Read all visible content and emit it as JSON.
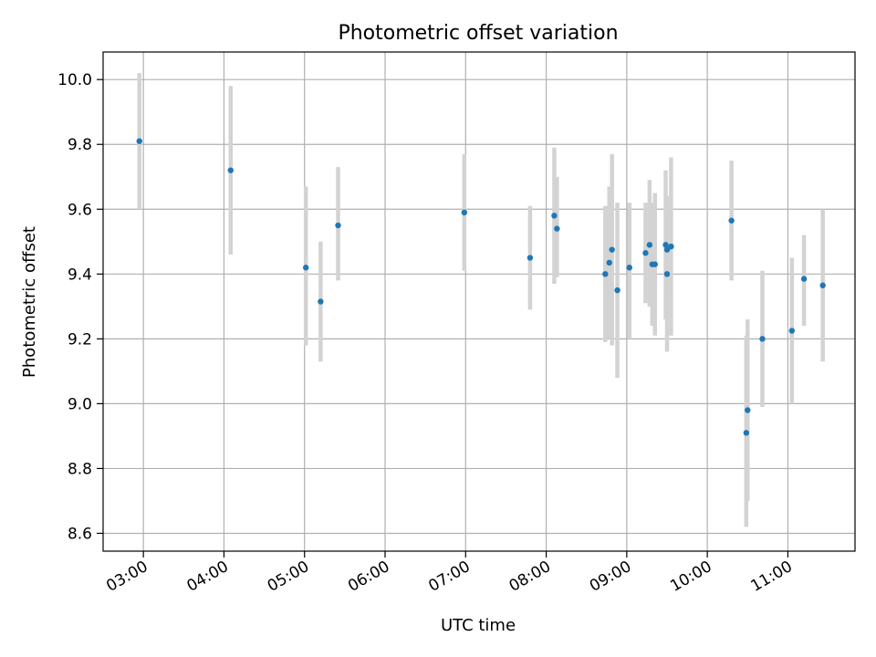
{
  "chart_data": {
    "type": "scatter",
    "title": "Photometric offset variation",
    "xlabel": "UTC time",
    "ylabel": "Photometric offset",
    "x_unit": "UTC hours",
    "x_range": [
      "02:30",
      "11:50"
    ],
    "ylim": [
      8.545,
      10.085
    ],
    "grid": true,
    "x_ticks": [
      "03:00",
      "04:00",
      "05:00",
      "06:00",
      "07:00",
      "08:00",
      "09:00",
      "10:00",
      "11:00"
    ],
    "y_ticks": [
      "8.6",
      "8.8",
      "9.0",
      "9.2",
      "9.4",
      "9.6",
      "9.8",
      "10.0"
    ],
    "colors": {
      "points": "#1f77b4",
      "error_bars": "#d3d3d3",
      "grid": "#b0b0b0"
    },
    "series": [
      {
        "points": [
          {
            "x": "02:57",
            "y": 9.81,
            "err_low": 9.6,
            "err_high": 10.02
          },
          {
            "x": "04:05",
            "y": 9.72,
            "err_low": 9.46,
            "err_high": 9.98
          },
          {
            "x": "05:01",
            "y": 9.42,
            "err_low": 9.18,
            "err_high": 9.67
          },
          {
            "x": "05:12",
            "y": 9.315,
            "err_low": 9.13,
            "err_high": 9.5
          },
          {
            "x": "05:25",
            "y": 9.55,
            "err_low": 9.38,
            "err_high": 9.73
          },
          {
            "x": "06:59",
            "y": 9.59,
            "err_low": 9.41,
            "err_high": 9.77
          },
          {
            "x": "07:48",
            "y": 9.45,
            "err_low": 9.29,
            "err_high": 9.61
          },
          {
            "x": "08:06",
            "y": 9.58,
            "err_low": 9.37,
            "err_high": 9.79
          },
          {
            "x": "08:08",
            "y": 9.54,
            "err_low": 9.39,
            "err_high": 9.7
          },
          {
            "x": "08:44",
            "y": 9.4,
            "err_low": 9.19,
            "err_high": 9.61
          },
          {
            "x": "08:47",
            "y": 9.435,
            "err_low": 9.2,
            "err_high": 9.67
          },
          {
            "x": "08:49",
            "y": 9.475,
            "err_low": 9.18,
            "err_high": 9.77
          },
          {
            "x": "08:53",
            "y": 9.35,
            "err_low": 9.08,
            "err_high": 9.62
          },
          {
            "x": "09:02",
            "y": 9.42,
            "err_low": 9.2,
            "err_high": 9.62
          },
          {
            "x": "09:14",
            "y": 9.465,
            "err_low": 9.31,
            "err_high": 9.62
          },
          {
            "x": "09:17",
            "y": 9.49,
            "err_low": 9.3,
            "err_high": 9.69
          },
          {
            "x": "09:19",
            "y": 9.43,
            "err_low": 9.24,
            "err_high": 9.62
          },
          {
            "x": "09:21",
            "y": 9.43,
            "err_low": 9.21,
            "err_high": 9.65
          },
          {
            "x": "09:29",
            "y": 9.49,
            "err_low": 9.26,
            "err_high": 9.72
          },
          {
            "x": "09:30",
            "y": 9.475,
            "err_low": 9.34,
            "err_high": 9.61
          },
          {
            "x": "09:30",
            "y": 9.4,
            "err_low": 9.16,
            "err_high": 9.64
          },
          {
            "x": "09:33",
            "y": 9.485,
            "err_low": 9.21,
            "err_high": 9.76
          },
          {
            "x": "10:18",
            "y": 9.565,
            "err_low": 9.38,
            "err_high": 9.75
          },
          {
            "x": "10:29",
            "y": 8.91,
            "err_low": 8.62,
            "err_high": 9.21
          },
          {
            "x": "10:30",
            "y": 8.98,
            "err_low": 8.7,
            "err_high": 9.26
          },
          {
            "x": "10:41",
            "y": 9.2,
            "err_low": 8.99,
            "err_high": 9.41
          },
          {
            "x": "11:03",
            "y": 9.225,
            "err_low": 9.0,
            "err_high": 9.45
          },
          {
            "x": "11:12",
            "y": 9.385,
            "err_low": 9.24,
            "err_high": 9.52
          },
          {
            "x": "11:26",
            "y": 9.365,
            "err_low": 9.13,
            "err_high": 9.6
          }
        ]
      }
    ]
  }
}
